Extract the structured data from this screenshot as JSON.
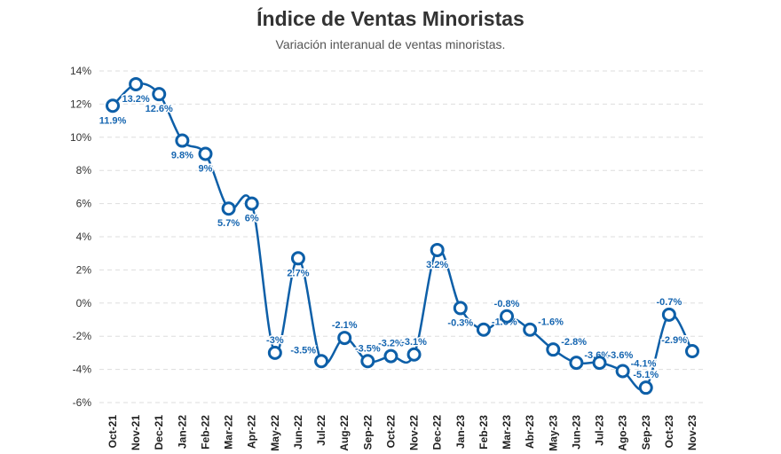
{
  "chart_data": {
    "type": "line",
    "title": "Índice de Ventas Minoristas",
    "subtitle": "Variación interanual de ventas minoristas.",
    "categories": [
      "Oct-21",
      "Nov-21",
      "Dec-21",
      "Jan-22",
      "Feb-22",
      "Mar-22",
      "Apr-22",
      "May-22",
      "Jun-22",
      "Jul-22",
      "Aug-22",
      "Sep-22",
      "Oct-22",
      "Nov-22",
      "Dec-22",
      "Jan-23",
      "Feb-23",
      "Mar-23",
      "Abr-23",
      "May-23",
      "Jun-23",
      "Jul-23",
      "Ago-23",
      "Sep-23",
      "Oct-23",
      "Nov-23"
    ],
    "values": [
      11.9,
      13.2,
      12.6,
      9.8,
      9,
      5.7,
      6,
      -3,
      2.7,
      -3.5,
      -2.1,
      -3.5,
      -3.2,
      -3.1,
      3.2,
      -0.3,
      -1.6,
      -0.8,
      -1.6,
      -2.8,
      -3.6,
      -3.6,
      -4.1,
      -5.1,
      -0.7,
      -2.9
    ],
    "data_labels": [
      "11.9%",
      "13.2%",
      "12.6%",
      "9.8%",
      "9%",
      "5.7%",
      "6%",
      "-3%",
      "2.7%",
      "-3.5%",
      "-2.1%",
      "-3.5%",
      "-3.2%",
      "-3.1%",
      "3.2%",
      "-0.3%",
      "-1.6%",
      "-0.8%",
      "-1.6%",
      "-2.8%",
      "-3.6%",
      "-3.6%",
      "-4.1%",
      "-5.1%",
      "-0.7%",
      "-2.9%"
    ],
    "yticks": [
      "14%",
      "12%",
      "10%",
      "8%",
      "6%",
      "4%",
      "2%",
      "0%",
      "-2%",
      "-4%",
      "-6%"
    ],
    "ylim": [
      -6,
      14
    ],
    "grid": true,
    "color": "#0d5fa8"
  }
}
